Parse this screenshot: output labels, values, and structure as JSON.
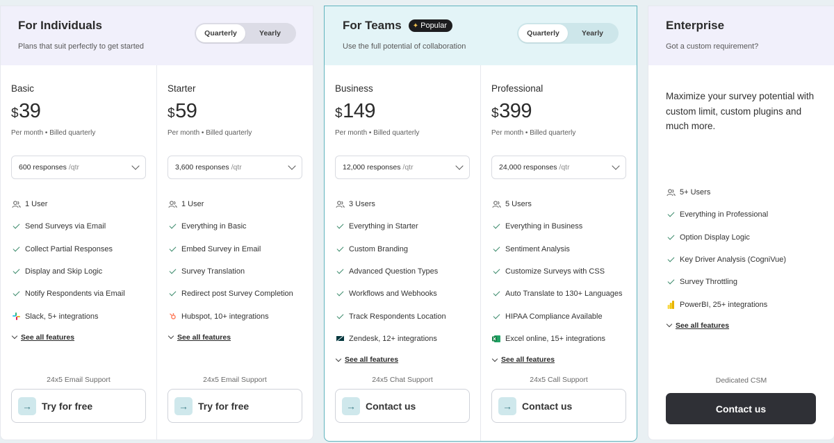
{
  "individuals": {
    "title": "For Individuals",
    "subtitle": "Plans that suit perfectly to get started",
    "toggle": {
      "quarterly": "Quarterly",
      "yearly": "Yearly",
      "selected": "Quarterly"
    },
    "plans": [
      {
        "name": "Basic",
        "currency": "$",
        "price": "39",
        "billing": "Per month • Billed quarterly",
        "responses": "600 responses",
        "responses_unit": "/qtr",
        "features": [
          {
            "icon": "users-icon",
            "text": "1 User"
          },
          {
            "icon": "check-icon",
            "text": "Send Surveys via Email"
          },
          {
            "icon": "check-icon",
            "text": "Collect Partial Responses"
          },
          {
            "icon": "check-icon",
            "text": "Display and Skip Logic"
          },
          {
            "icon": "check-icon",
            "text": "Notify Respondents via Email"
          },
          {
            "icon": "slack-icon",
            "text": "Slack, 5+ integrations"
          }
        ],
        "see_all": "See all features",
        "support": "24x5 Email Support",
        "cta": "Try for free"
      },
      {
        "name": "Starter",
        "currency": "$",
        "price": "59",
        "billing": "Per month • Billed quarterly",
        "responses": "3,600 responses",
        "responses_unit": "/qtr",
        "features": [
          {
            "icon": "users-icon",
            "text": "1 User"
          },
          {
            "icon": "check-icon",
            "text": "Everything in Basic"
          },
          {
            "icon": "check-icon",
            "text": "Embed Survey in Email"
          },
          {
            "icon": "check-icon",
            "text": "Survey Translation"
          },
          {
            "icon": "check-icon",
            "text": "Redirect post Survey Completion"
          },
          {
            "icon": "hubspot-icon",
            "text": "Hubspot, 10+ integrations"
          }
        ],
        "see_all": "See all features",
        "support": "24x5 Email Support",
        "cta": "Try for free"
      }
    ]
  },
  "teams": {
    "title": "For Teams",
    "badge": "Popular",
    "subtitle": "Use the full potential of collaboration",
    "toggle": {
      "quarterly": "Quarterly",
      "yearly": "Yearly",
      "selected": "Quarterly"
    },
    "plans": [
      {
        "name": "Business",
        "currency": "$",
        "price": "149",
        "billing": "Per month • Billed quarterly",
        "responses": "12,000 responses",
        "responses_unit": "/qtr",
        "features": [
          {
            "icon": "users-icon",
            "text": "3 Users"
          },
          {
            "icon": "check-icon",
            "text": "Everything in Starter"
          },
          {
            "icon": "check-icon",
            "text": "Custom Branding"
          },
          {
            "icon": "check-icon",
            "text": "Advanced Question Types"
          },
          {
            "icon": "check-icon",
            "text": "Workflows and Webhooks"
          },
          {
            "icon": "check-icon",
            "text": "Track Respondents Location"
          },
          {
            "icon": "zendesk-icon",
            "text": "Zendesk, 12+ integrations"
          }
        ],
        "see_all": "See all features",
        "support": "24x5 Chat Support",
        "cta": "Contact us"
      },
      {
        "name": "Professional",
        "currency": "$",
        "price": "399",
        "billing": "Per month • Billed quarterly",
        "responses": "24,000 responses",
        "responses_unit": "/qtr",
        "features": [
          {
            "icon": "users-icon",
            "text": "5 Users"
          },
          {
            "icon": "check-icon",
            "text": "Everything in Business"
          },
          {
            "icon": "check-icon",
            "text": "Sentiment Analysis"
          },
          {
            "icon": "check-icon",
            "text": "Customize Surveys with CSS"
          },
          {
            "icon": "check-icon",
            "text": "Auto Translate to 130+ Languages"
          },
          {
            "icon": "check-icon",
            "text": "HIPAA Compliance Available"
          },
          {
            "icon": "excel-icon",
            "text": "Excel online, 15+ integrations"
          }
        ],
        "see_all": "See all features",
        "support": "24x5 Call Support",
        "cta": "Contact us"
      }
    ]
  },
  "enterprise": {
    "title": "Enterprise",
    "subtitle": "Got a custom requirement?",
    "description": "Maximize your survey potential with custom limit, custom plugins and much more.",
    "features": [
      {
        "icon": "users-icon",
        "text": "5+ Users"
      },
      {
        "icon": "check-icon",
        "text": "Everything in Professional"
      },
      {
        "icon": "check-icon",
        "text": "Option Display Logic"
      },
      {
        "icon": "check-icon",
        "text": "Key Driver Analysis (CogniVue)"
      },
      {
        "icon": "check-icon",
        "text": "Survey Throttling"
      },
      {
        "icon": "powerbi-icon",
        "text": "PowerBI, 25+ integrations"
      }
    ],
    "see_all": "See all features",
    "support": "Dedicated CSM",
    "cta": "Contact us"
  },
  "colors": {
    "accent": "#5fb3bd",
    "check": "#3a8a6a",
    "individuals_header": "#f1f0fb",
    "teams_header": "#e3f4f7",
    "enterprise_cta": "#2f3036"
  }
}
